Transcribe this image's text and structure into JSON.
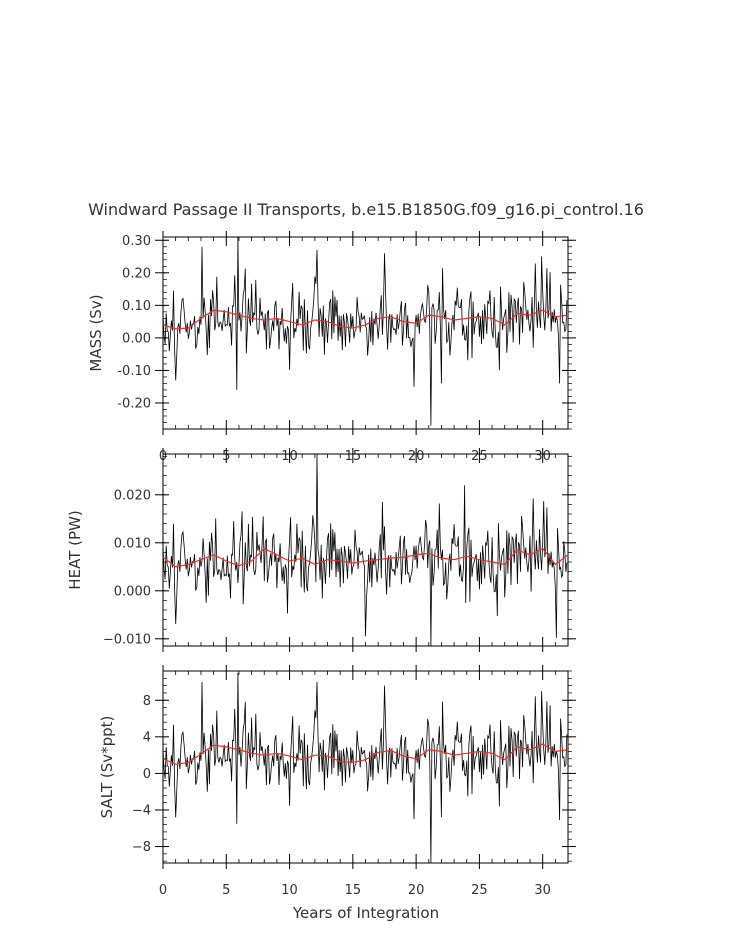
{
  "title": "Windward Passage II Transports, b.e15.B1850G.f09_g16.pi_control.16",
  "xlabel": "Years of Integration",
  "colors": {
    "raw": "#000000",
    "smooth": "#e8302a",
    "axis": "#333333"
  },
  "chart_data": [
    {
      "type": "line",
      "name": "mass",
      "ylabel": "MASS (Sv)",
      "xlim": [
        0,
        32
      ],
      "ylim": [
        -0.28,
        0.31
      ],
      "yticks": [
        -0.2,
        -0.1,
        0.0,
        0.1,
        0.2,
        0.3
      ],
      "ytick_labels": [
        "-0.20",
        "-0.10",
        "0.00",
        "0.10",
        "0.20",
        "0.30"
      ],
      "xticks": [
        0,
        5,
        10,
        15,
        20,
        25,
        30
      ],
      "xtick_labels": [
        "0",
        "5",
        "10",
        "15",
        "20",
        "25",
        "30"
      ],
      "noise_mean": 0.05,
      "noise_sd": 0.06,
      "spikes": [
        [
          3.1,
          0.28
        ],
        [
          5.9,
          0.31
        ],
        [
          12.2,
          0.27
        ],
        [
          17.5,
          0.26
        ],
        [
          29.9,
          0.25
        ],
        [
          5.8,
          -0.16
        ],
        [
          21.2,
          -0.27
        ],
        [
          19.8,
          -0.15
        ],
        [
          22.0,
          -0.14
        ]
      ],
      "smooth": {
        "x": [
          0,
          1,
          2,
          3,
          4,
          5,
          6,
          7,
          8,
          9,
          10,
          11,
          12,
          13,
          14,
          15,
          16,
          17,
          18,
          19,
          20,
          21,
          22,
          23,
          24,
          25,
          26,
          27,
          28,
          29,
          30,
          31,
          32
        ],
        "y": [
          0.04,
          0.028,
          0.03,
          0.06,
          0.085,
          0.08,
          0.07,
          0.06,
          0.055,
          0.06,
          0.05,
          0.04,
          0.055,
          0.05,
          0.035,
          0.03,
          0.04,
          0.06,
          0.065,
          0.05,
          0.045,
          0.07,
          0.065,
          0.055,
          0.06,
          0.065,
          0.06,
          0.04,
          0.075,
          0.07,
          0.085,
          0.065,
          0.07
        ]
      }
    },
    {
      "type": "line",
      "name": "heat",
      "ylabel": "HEAT (PW)",
      "xlim": [
        0,
        32
      ],
      "ylim": [
        -0.0115,
        0.0285
      ],
      "yticks": [
        -0.01,
        0.0,
        0.01,
        0.02
      ],
      "ytick_labels": [
        "−0.010",
        "0.000",
        "0.010",
        "0.020"
      ],
      "xticks": [
        0,
        5,
        10,
        15,
        20,
        25,
        30
      ],
      "xtick_labels": [],
      "noise_mean": 0.0068,
      "noise_sd": 0.0045,
      "spikes": [
        [
          12.2,
          0.0285
        ],
        [
          23.8,
          0.022
        ],
        [
          16.0,
          -0.0095
        ],
        [
          21.2,
          -0.0115
        ],
        [
          7.9,
          0.0155
        ],
        [
          17.3,
          0.0185
        ]
      ],
      "smooth": {
        "x": [
          0,
          1,
          2,
          3,
          4,
          5,
          6,
          7,
          8,
          9,
          10,
          11,
          12,
          13,
          14,
          15,
          16,
          17,
          18,
          19,
          20,
          21,
          22,
          23,
          24,
          25,
          26,
          27,
          28,
          29,
          30,
          31,
          32
        ],
        "y": [
          0.007,
          0.005,
          0.0055,
          0.0065,
          0.0075,
          0.0062,
          0.0052,
          0.0062,
          0.0088,
          0.0075,
          0.0062,
          0.0068,
          0.0055,
          0.0065,
          0.0062,
          0.0058,
          0.0062,
          0.0065,
          0.0068,
          0.007,
          0.0075,
          0.0078,
          0.0068,
          0.0065,
          0.0072,
          0.0065,
          0.006,
          0.0055,
          0.0085,
          0.0075,
          0.0088,
          0.0055,
          0.0075
        ]
      }
    },
    {
      "type": "line",
      "name": "salt",
      "ylabel": "SALT (Sv*ppt)",
      "xlim": [
        0,
        32
      ],
      "ylim": [
        -9.8,
        11.2
      ],
      "yticks": [
        -8,
        -4,
        0,
        4,
        8
      ],
      "ytick_labels": [
        "−8",
        "−4",
        "0",
        "4",
        "8"
      ],
      "xticks": [
        0,
        5,
        10,
        15,
        20,
        25,
        30
      ],
      "xtick_labels": [
        "0",
        "5",
        "10",
        "15",
        "20",
        "25",
        "30"
      ],
      "noise_mean": 1.9,
      "noise_sd": 2.2,
      "spikes": [
        [
          3.1,
          10.0
        ],
        [
          5.9,
          11.0
        ],
        [
          12.2,
          10.0
        ],
        [
          17.5,
          9.6
        ],
        [
          29.9,
          9.0
        ],
        [
          5.8,
          -5.5
        ],
        [
          21.2,
          -9.8
        ],
        [
          19.8,
          -5.0
        ],
        [
          22.0,
          -4.8
        ]
      ],
      "smooth": {
        "x": [
          0,
          1,
          2,
          3,
          4,
          5,
          6,
          7,
          8,
          9,
          10,
          11,
          12,
          13,
          14,
          15,
          16,
          17,
          18,
          19,
          20,
          21,
          22,
          23,
          24,
          25,
          26,
          27,
          28,
          29,
          30,
          31,
          32
        ],
        "y": [
          1.6,
          1.0,
          1.2,
          2.1,
          3.1,
          2.9,
          2.6,
          2.2,
          2.0,
          2.2,
          1.9,
          1.5,
          2.0,
          1.9,
          1.3,
          1.2,
          1.5,
          2.3,
          2.5,
          1.9,
          1.6,
          2.6,
          2.4,
          2.0,
          2.2,
          2.4,
          2.2,
          1.5,
          2.9,
          2.6,
          3.2,
          2.4,
          2.6
        ]
      }
    }
  ]
}
